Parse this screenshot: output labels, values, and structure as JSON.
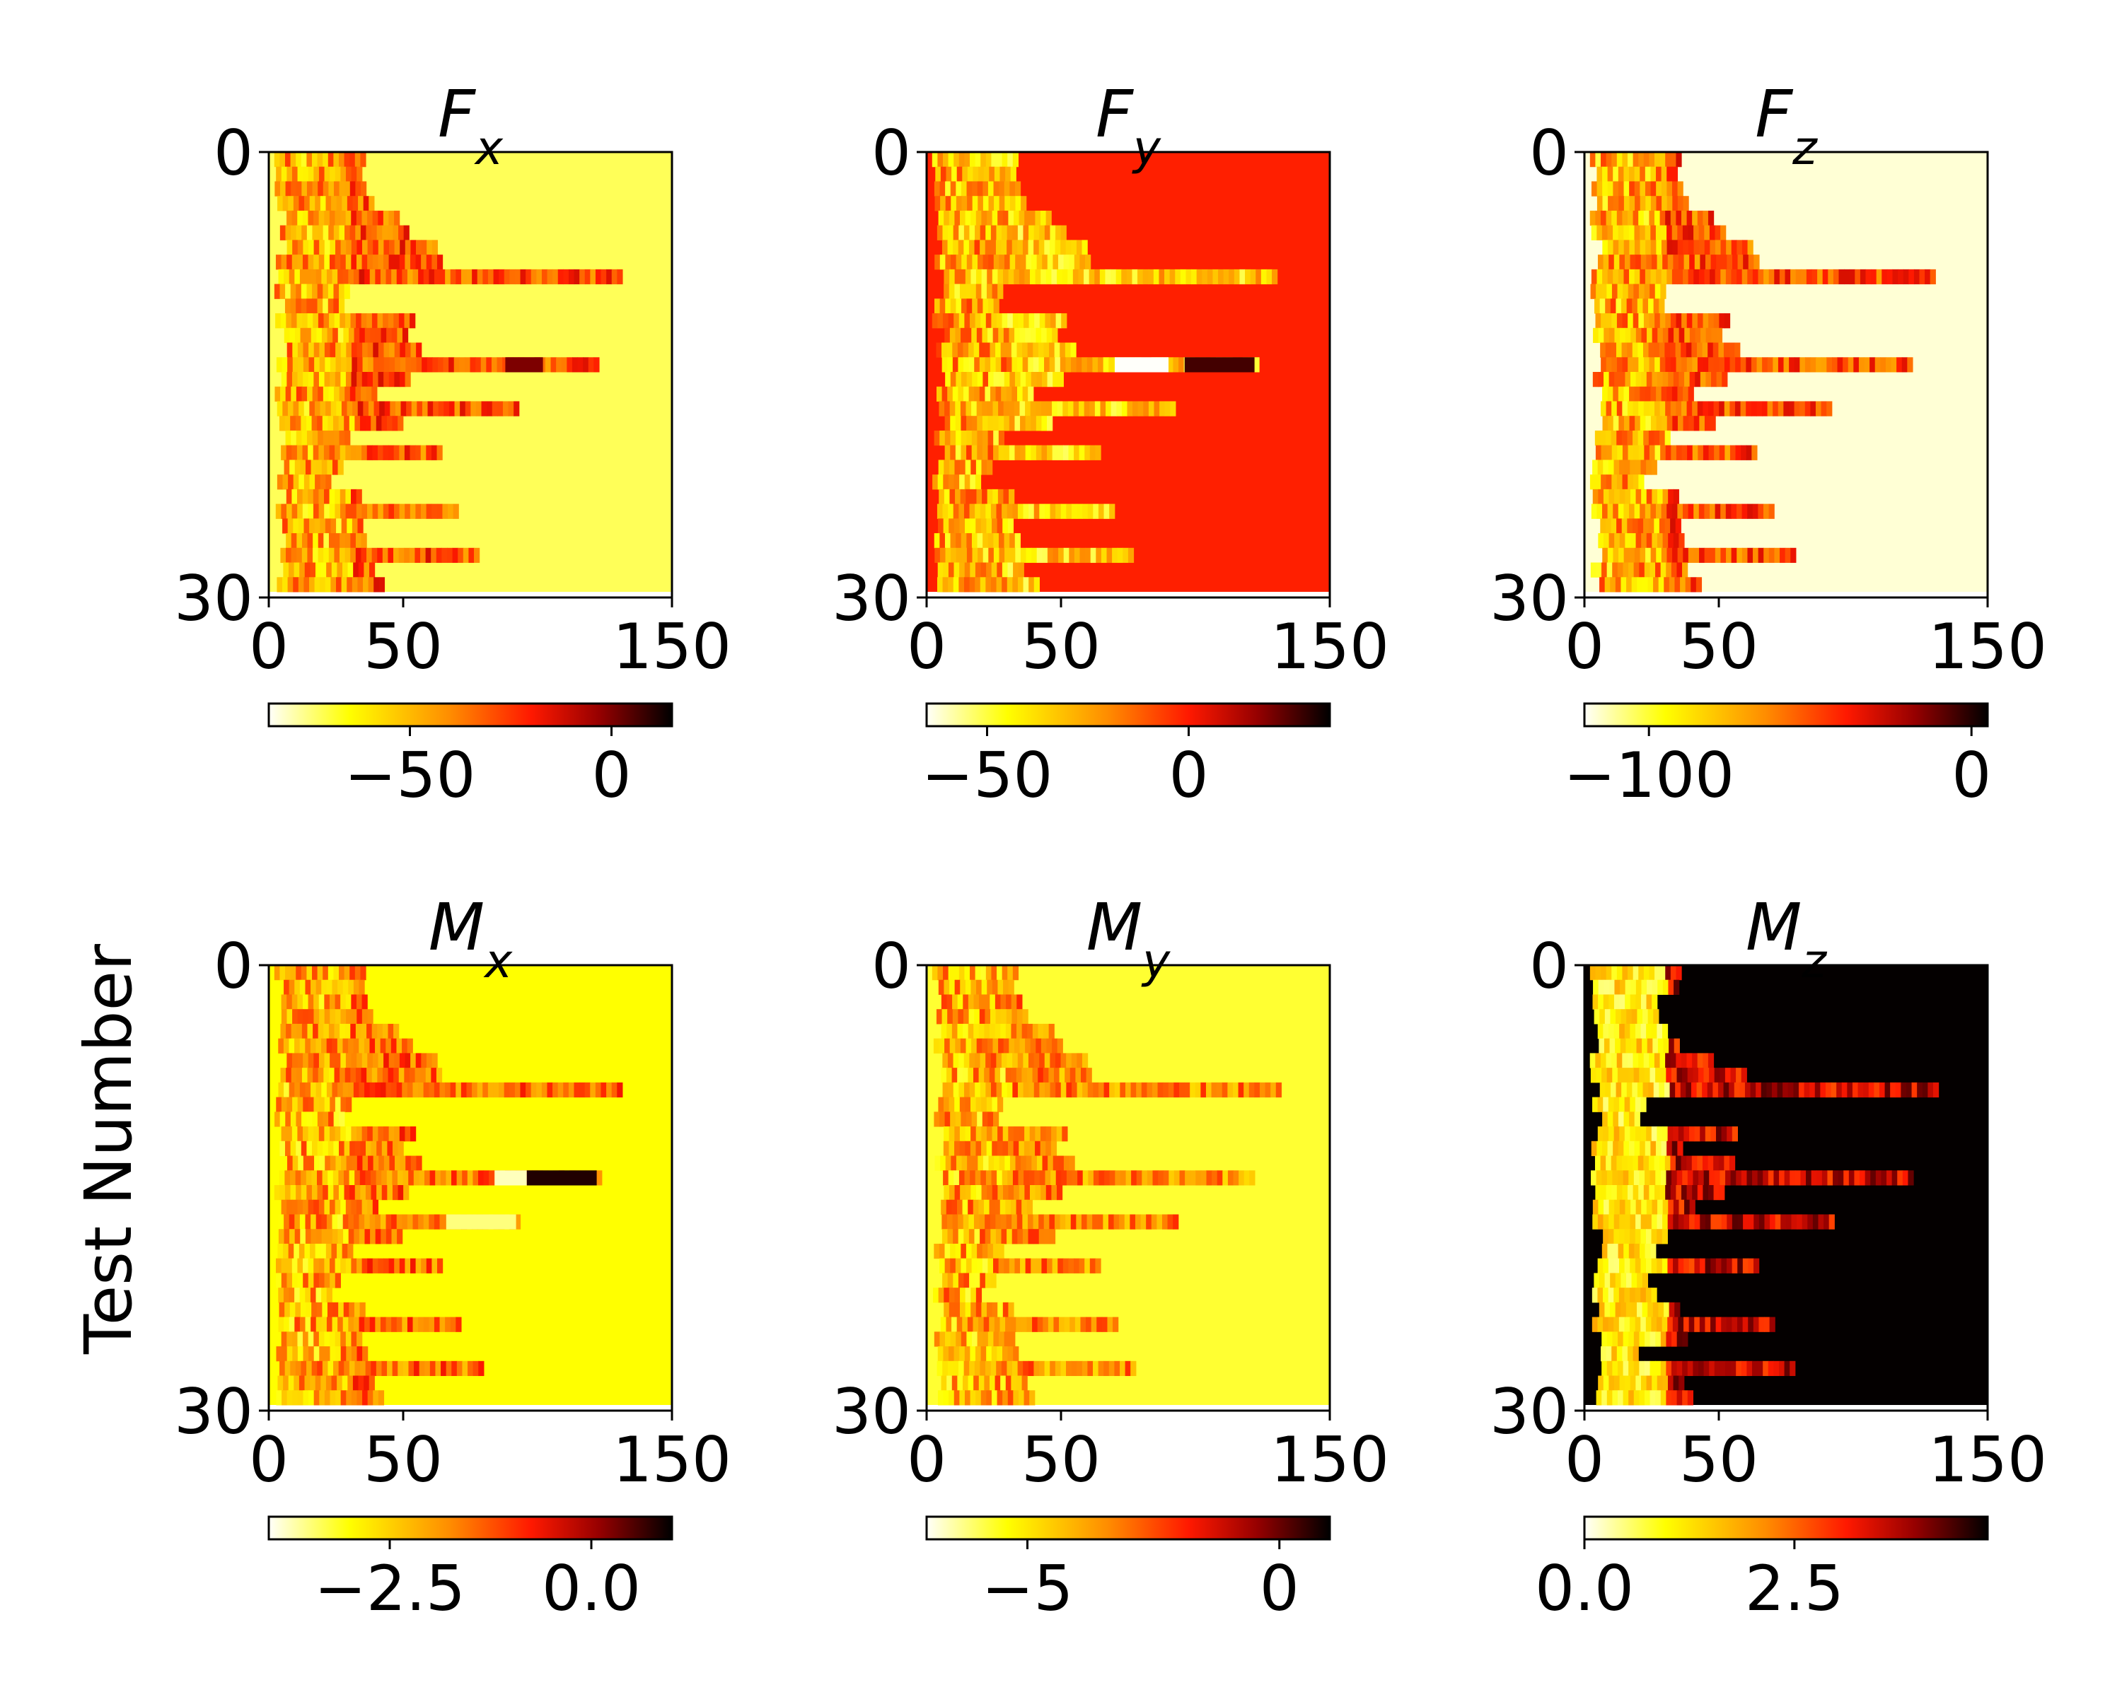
{
  "figure": {
    "ylabel": "Test Number"
  },
  "chart_data": [
    {
      "type": "heatmap",
      "id": "fx",
      "title_main": "F",
      "title_sub": "x",
      "x_ticks": [
        "0",
        "50",
        "150"
      ],
      "x_tick_values": [
        0,
        50,
        150
      ],
      "y_ticks": [
        "0",
        "30"
      ],
      "y_tick_values": [
        0,
        30
      ],
      "xlim": [
        0,
        150
      ],
      "ylim": [
        0,
        30
      ],
      "background_value": 0.13,
      "colorbar": {
        "ticks": [
          "−50",
          "0"
        ],
        "tick_values": [
          -50,
          0
        ],
        "range": [
          -85,
          15
        ]
      },
      "rows_end_x": [
        36,
        34,
        36,
        38,
        48,
        52,
        62,
        64,
        130,
        30,
        28,
        54,
        50,
        56,
        122,
        52,
        40,
        92,
        48,
        30,
        64,
        26,
        22,
        34,
        70,
        34,
        36,
        78,
        38,
        42
      ],
      "highlights": [
        {
          "row": 14,
          "x0": 88,
          "x1": 102,
          "value": 0.85
        }
      ],
      "tail_value": 0.55
    },
    {
      "type": "heatmap",
      "id": "fy",
      "title_main": "F",
      "title_sub": "y",
      "x_ticks": [
        "0",
        "50",
        "150"
      ],
      "x_tick_values": [
        0,
        50,
        150
      ],
      "y_ticks": [
        "0",
        "30"
      ],
      "y_tick_values": [
        0,
        30
      ],
      "xlim": [
        0,
        150
      ],
      "ylim": [
        0,
        30
      ],
      "background_value": 0.64,
      "colorbar": {
        "ticks": [
          "−50",
          "0"
        ],
        "tick_values": [
          -50,
          0
        ],
        "range": [
          -65,
          35
        ]
      },
      "rows_end_x": [
        34,
        32,
        34,
        36,
        46,
        50,
        58,
        60,
        130,
        28,
        26,
        52,
        48,
        54,
        122,
        50,
        38,
        92,
        46,
        28,
        64,
        24,
        20,
        32,
        68,
        32,
        34,
        76,
        36,
        40
      ],
      "highlights": [
        {
          "row": 14,
          "x0": 70,
          "x1": 90,
          "value": 0.0
        },
        {
          "row": 14,
          "x0": 96,
          "x1": 122,
          "value": 0.92
        }
      ],
      "tail_value": 0.3
    },
    {
      "type": "heatmap",
      "id": "fz",
      "title_main": "F",
      "title_sub": "z",
      "x_ticks": [
        "0",
        "50",
        "150"
      ],
      "x_tick_values": [
        0,
        50,
        150
      ],
      "y_ticks": [
        "0",
        "30"
      ],
      "y_tick_values": [
        0,
        30
      ],
      "xlim": [
        0,
        150
      ],
      "ylim": [
        0,
        30
      ],
      "background_value": 0.03,
      "colorbar": {
        "ticks": [
          "−100",
          "0"
        ],
        "tick_values": [
          -100,
          0
        ],
        "range": [
          -120,
          5
        ]
      },
      "rows_end_x": [
        36,
        34,
        36,
        38,
        48,
        52,
        62,
        64,
        130,
        30,
        28,
        54,
        50,
        56,
        122,
        52,
        40,
        92,
        48,
        30,
        64,
        26,
        22,
        34,
        70,
        34,
        36,
        78,
        38,
        42
      ],
      "highlights": [],
      "tail_value": 0.55
    },
    {
      "type": "heatmap",
      "id": "mx",
      "title_main": "M",
      "title_sub": "x",
      "x_ticks": [
        "0",
        "50",
        "150"
      ],
      "x_tick_values": [
        0,
        50,
        150
      ],
      "y_ticks": [
        "0",
        "30"
      ],
      "y_tick_values": [
        0,
        30
      ],
      "xlim": [
        0,
        150
      ],
      "ylim": [
        0,
        30
      ],
      "background_value": 0.2,
      "colorbar": {
        "ticks": [
          "−2.5",
          "0.0"
        ],
        "tick_values": [
          -2.5,
          0
        ],
        "range": [
          -4,
          1
        ]
      },
      "rows_end_x": [
        36,
        34,
        36,
        38,
        48,
        52,
        62,
        64,
        130,
        30,
        28,
        54,
        50,
        56,
        122,
        52,
        40,
        92,
        48,
        30,
        64,
        26,
        22,
        34,
        70,
        34,
        36,
        78,
        38,
        42
      ],
      "highlights": [
        {
          "row": 14,
          "x0": 84,
          "x1": 96,
          "value": 0.05
        },
        {
          "row": 14,
          "x0": 96,
          "x1": 122,
          "value": 0.96
        },
        {
          "row": 17,
          "x0": 66,
          "x1": 92,
          "value": 0.1
        }
      ],
      "tail_value": 0.5
    },
    {
      "type": "heatmap",
      "id": "my",
      "title_main": "M",
      "title_sub": "y",
      "x_ticks": [
        "0",
        "50",
        "150"
      ],
      "x_tick_values": [
        0,
        50,
        150
      ],
      "y_ticks": [
        "0",
        "30"
      ],
      "y_tick_values": [
        0,
        30
      ],
      "xlim": [
        0,
        150
      ],
      "ylim": [
        0,
        30
      ],
      "background_value": 0.16,
      "colorbar": {
        "ticks": [
          "−5",
          "0"
        ],
        "tick_values": [
          -5,
          0
        ],
        "range": [
          -7,
          1
        ]
      },
      "rows_end_x": [
        34,
        32,
        34,
        36,
        46,
        50,
        58,
        60,
        130,
        28,
        26,
        52,
        48,
        54,
        122,
        50,
        38,
        92,
        46,
        28,
        64,
        24,
        20,
        32,
        70,
        32,
        34,
        76,
        36,
        40
      ],
      "highlights": [],
      "tail_value": 0.45
    },
    {
      "type": "heatmap",
      "id": "mz",
      "title_main": "M",
      "title_sub": "z",
      "x_ticks": [
        "0",
        "50",
        "150"
      ],
      "x_tick_values": [
        0,
        50,
        150
      ],
      "y_ticks": [
        "0",
        "30"
      ],
      "y_tick_values": [
        0,
        30
      ],
      "xlim": [
        0,
        150
      ],
      "ylim": [
        0,
        30
      ],
      "background_value": 0.995,
      "colorbar": {
        "ticks": [
          "0.0",
          "2.5"
        ],
        "tick_values": [
          0,
          2.5
        ],
        "range": [
          0,
          4.8
        ]
      },
      "rows_end_x": [
        36,
        34,
        26,
        26,
        30,
        34,
        48,
        60,
        130,
        22,
        20,
        56,
        36,
        54,
        122,
        52,
        40,
        92,
        30,
        26,
        64,
        22,
        26,
        34,
        70,
        38,
        20,
        78,
        36,
        40
      ],
      "highlights": [],
      "tail_value": 0.25
    }
  ]
}
